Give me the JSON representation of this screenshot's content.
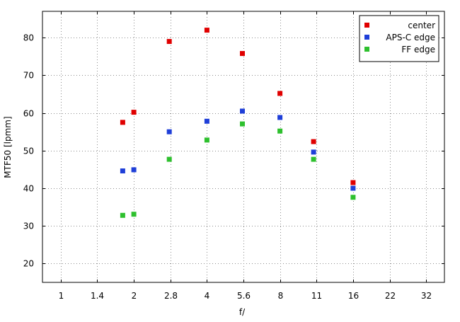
{
  "chart_data": {
    "type": "scatter",
    "xlabel": "f/",
    "ylabel": "MTF50 [lpmm]",
    "x_ticks": [
      "1",
      "1.4",
      "2",
      "2.8",
      "4",
      "5.6",
      "8",
      "11",
      "16",
      "22",
      "32"
    ],
    "ylim": [
      15,
      87
    ],
    "y_ticks": [
      20,
      30,
      40,
      50,
      60,
      70,
      80
    ],
    "grid": true,
    "legend_position": "top-right",
    "series": [
      {
        "name": "center",
        "color": "#e00000",
        "points": [
          {
            "x": "1.8",
            "y": 57.5
          },
          {
            "x": "2",
            "y": 60.2
          },
          {
            "x": "2.8",
            "y": 79.0
          },
          {
            "x": "4",
            "y": 82.0
          },
          {
            "x": "5.6",
            "y": 75.8
          },
          {
            "x": "8",
            "y": 65.2
          },
          {
            "x": "11",
            "y": 52.4
          },
          {
            "x": "16",
            "y": 41.5
          }
        ]
      },
      {
        "name": "APS-C edge",
        "color": "#1f3fd8",
        "points": [
          {
            "x": "1.8",
            "y": 44.6
          },
          {
            "x": "2",
            "y": 44.9
          },
          {
            "x": "2.8",
            "y": 55.0
          },
          {
            "x": "4",
            "y": 57.8
          },
          {
            "x": "5.6",
            "y": 60.5
          },
          {
            "x": "8",
            "y": 58.8
          },
          {
            "x": "11",
            "y": 49.6
          },
          {
            "x": "16",
            "y": 40.0
          }
        ]
      },
      {
        "name": "FF edge",
        "color": "#2ec02e",
        "points": [
          {
            "x": "1.8",
            "y": 32.8
          },
          {
            "x": "2",
            "y": 33.1
          },
          {
            "x": "2.8",
            "y": 47.7
          },
          {
            "x": "4",
            "y": 52.8
          },
          {
            "x": "5.6",
            "y": 57.1
          },
          {
            "x": "8",
            "y": 55.2
          },
          {
            "x": "11",
            "y": 47.7
          },
          {
            "x": "16",
            "y": 37.6
          }
        ]
      }
    ]
  }
}
